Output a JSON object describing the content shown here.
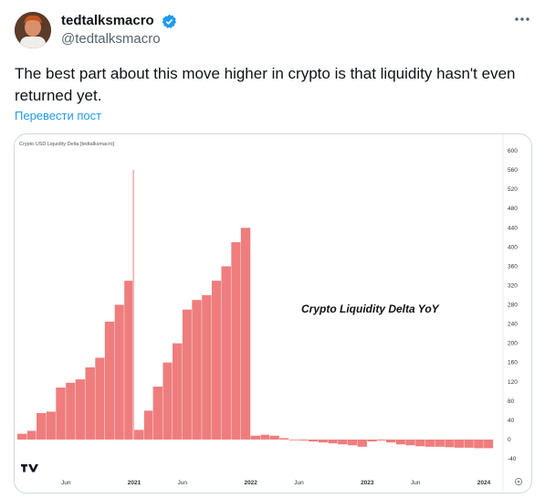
{
  "post": {
    "author_name": "tedtalksmacro",
    "author_handle": "@tedtalksmacro",
    "text": "The best part about this move higher in crypto is that liquidity hasn't even returned yet.",
    "translate_label": "Перевести пост",
    "icons": {
      "verified": "verified-badge-icon",
      "more": "more-options-icon",
      "tradingview": "tradingview-logo-icon"
    },
    "colors": {
      "verified": "#1d9bf0",
      "link": "#1d9bf0",
      "bar": "#ef7d7d"
    }
  },
  "chart_data": {
    "type": "bar",
    "title": "Crypto USD Liquidity Delta [tedtalksmacro]",
    "annotation": "Crypto Liquidity Delta YoY",
    "x_tick_labels": [
      "Jun",
      "2021",
      "Jun",
      "2022",
      "Jun",
      "2023",
      "Jun",
      "2024"
    ],
    "y_tick_labels": [
      "600",
      "560",
      "520",
      "480",
      "440",
      "400",
      "360",
      "320",
      "280",
      "240",
      "200",
      "160",
      "120",
      "80",
      "40",
      "0",
      "-40"
    ],
    "ylim": [
      -40,
      600
    ],
    "xlim": [
      "2020-01-01",
      "2024-03-01"
    ],
    "grid": false,
    "series": [
      {
        "x": [
          "2020-01",
          "2020-02",
          "2020-03",
          "2020-04",
          "2020-05",
          "2020-06",
          "2020-07",
          "2020-08",
          "2020-09",
          "2020-10",
          "2020-11",
          "2020-12",
          "2020-12-28",
          "2021-01",
          "2021-02",
          "2021-03",
          "2021-04",
          "2021-05",
          "2021-06",
          "2021-07",
          "2021-08",
          "2021-09",
          "2021-10",
          "2021-11",
          "2021-12",
          "2022-01",
          "2022-02",
          "2022-03",
          "2022-04",
          "2022-05",
          "2022-06",
          "2022-07",
          "2022-08",
          "2022-09",
          "2022-10",
          "2022-11",
          "2022-12",
          "2023-01",
          "2023-02",
          "2023-03",
          "2023-04",
          "2023-05",
          "2023-06",
          "2023-07",
          "2023-08",
          "2023-09",
          "2023-10",
          "2023-11",
          "2023-12",
          "2024-01"
        ],
        "values": [
          12,
          18,
          55,
          58,
          108,
          118,
          125,
          150,
          170,
          245,
          280,
          330,
          560,
          20,
          60,
          110,
          160,
          200,
          270,
          290,
          300,
          330,
          360,
          410,
          440,
          8,
          10,
          8,
          3,
          0,
          -2,
          -4,
          -6,
          -8,
          -10,
          -12,
          -15,
          -4,
          -2,
          -6,
          -10,
          -12,
          -14,
          -15,
          -15,
          -16,
          -17,
          -17,
          -18,
          -18
        ]
      }
    ]
  }
}
